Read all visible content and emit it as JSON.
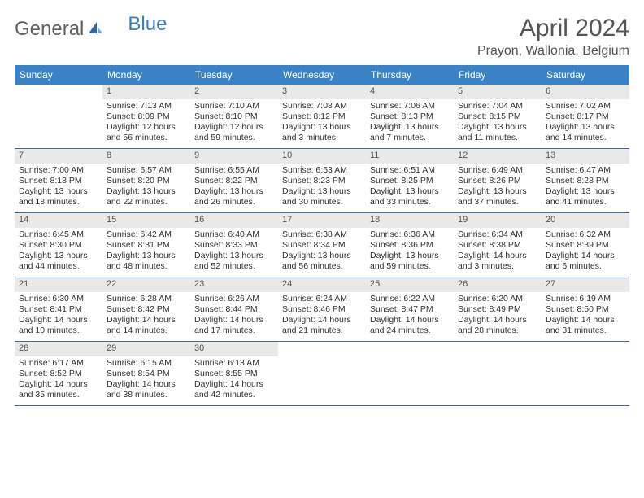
{
  "logo": {
    "gray": "General",
    "blue": "Blue"
  },
  "title": "April 2024",
  "location": "Prayon, Wallonia, Belgium",
  "colors": {
    "header_bg": "#3b82c4",
    "header_text": "#ffffff",
    "daynum_bg": "#e9e9e9",
    "daynum_text": "#555555",
    "body_text": "#333333",
    "row_border": "#3b6fa4",
    "logo_gray": "#606060",
    "logo_blue": "#3b7fc4"
  },
  "day_names": [
    "Sunday",
    "Monday",
    "Tuesday",
    "Wednesday",
    "Thursday",
    "Friday",
    "Saturday"
  ],
  "weeks": [
    [
      null,
      {
        "n": "1",
        "sr": "Sunrise: 7:13 AM",
        "ss": "Sunset: 8:09 PM",
        "d1": "Daylight: 12 hours",
        "d2": "and 56 minutes."
      },
      {
        "n": "2",
        "sr": "Sunrise: 7:10 AM",
        "ss": "Sunset: 8:10 PM",
        "d1": "Daylight: 12 hours",
        "d2": "and 59 minutes."
      },
      {
        "n": "3",
        "sr": "Sunrise: 7:08 AM",
        "ss": "Sunset: 8:12 PM",
        "d1": "Daylight: 13 hours",
        "d2": "and 3 minutes."
      },
      {
        "n": "4",
        "sr": "Sunrise: 7:06 AM",
        "ss": "Sunset: 8:13 PM",
        "d1": "Daylight: 13 hours",
        "d2": "and 7 minutes."
      },
      {
        "n": "5",
        "sr": "Sunrise: 7:04 AM",
        "ss": "Sunset: 8:15 PM",
        "d1": "Daylight: 13 hours",
        "d2": "and 11 minutes."
      },
      {
        "n": "6",
        "sr": "Sunrise: 7:02 AM",
        "ss": "Sunset: 8:17 PM",
        "d1": "Daylight: 13 hours",
        "d2": "and 14 minutes."
      }
    ],
    [
      {
        "n": "7",
        "sr": "Sunrise: 7:00 AM",
        "ss": "Sunset: 8:18 PM",
        "d1": "Daylight: 13 hours",
        "d2": "and 18 minutes."
      },
      {
        "n": "8",
        "sr": "Sunrise: 6:57 AM",
        "ss": "Sunset: 8:20 PM",
        "d1": "Daylight: 13 hours",
        "d2": "and 22 minutes."
      },
      {
        "n": "9",
        "sr": "Sunrise: 6:55 AM",
        "ss": "Sunset: 8:22 PM",
        "d1": "Daylight: 13 hours",
        "d2": "and 26 minutes."
      },
      {
        "n": "10",
        "sr": "Sunrise: 6:53 AM",
        "ss": "Sunset: 8:23 PM",
        "d1": "Daylight: 13 hours",
        "d2": "and 30 minutes."
      },
      {
        "n": "11",
        "sr": "Sunrise: 6:51 AM",
        "ss": "Sunset: 8:25 PM",
        "d1": "Daylight: 13 hours",
        "d2": "and 33 minutes."
      },
      {
        "n": "12",
        "sr": "Sunrise: 6:49 AM",
        "ss": "Sunset: 8:26 PM",
        "d1": "Daylight: 13 hours",
        "d2": "and 37 minutes."
      },
      {
        "n": "13",
        "sr": "Sunrise: 6:47 AM",
        "ss": "Sunset: 8:28 PM",
        "d1": "Daylight: 13 hours",
        "d2": "and 41 minutes."
      }
    ],
    [
      {
        "n": "14",
        "sr": "Sunrise: 6:45 AM",
        "ss": "Sunset: 8:30 PM",
        "d1": "Daylight: 13 hours",
        "d2": "and 44 minutes."
      },
      {
        "n": "15",
        "sr": "Sunrise: 6:42 AM",
        "ss": "Sunset: 8:31 PM",
        "d1": "Daylight: 13 hours",
        "d2": "and 48 minutes."
      },
      {
        "n": "16",
        "sr": "Sunrise: 6:40 AM",
        "ss": "Sunset: 8:33 PM",
        "d1": "Daylight: 13 hours",
        "d2": "and 52 minutes."
      },
      {
        "n": "17",
        "sr": "Sunrise: 6:38 AM",
        "ss": "Sunset: 8:34 PM",
        "d1": "Daylight: 13 hours",
        "d2": "and 56 minutes."
      },
      {
        "n": "18",
        "sr": "Sunrise: 6:36 AM",
        "ss": "Sunset: 8:36 PM",
        "d1": "Daylight: 13 hours",
        "d2": "and 59 minutes."
      },
      {
        "n": "19",
        "sr": "Sunrise: 6:34 AM",
        "ss": "Sunset: 8:38 PM",
        "d1": "Daylight: 14 hours",
        "d2": "and 3 minutes."
      },
      {
        "n": "20",
        "sr": "Sunrise: 6:32 AM",
        "ss": "Sunset: 8:39 PM",
        "d1": "Daylight: 14 hours",
        "d2": "and 6 minutes."
      }
    ],
    [
      {
        "n": "21",
        "sr": "Sunrise: 6:30 AM",
        "ss": "Sunset: 8:41 PM",
        "d1": "Daylight: 14 hours",
        "d2": "and 10 minutes."
      },
      {
        "n": "22",
        "sr": "Sunrise: 6:28 AM",
        "ss": "Sunset: 8:42 PM",
        "d1": "Daylight: 14 hours",
        "d2": "and 14 minutes."
      },
      {
        "n": "23",
        "sr": "Sunrise: 6:26 AM",
        "ss": "Sunset: 8:44 PM",
        "d1": "Daylight: 14 hours",
        "d2": "and 17 minutes."
      },
      {
        "n": "24",
        "sr": "Sunrise: 6:24 AM",
        "ss": "Sunset: 8:46 PM",
        "d1": "Daylight: 14 hours",
        "d2": "and 21 minutes."
      },
      {
        "n": "25",
        "sr": "Sunrise: 6:22 AM",
        "ss": "Sunset: 8:47 PM",
        "d1": "Daylight: 14 hours",
        "d2": "and 24 minutes."
      },
      {
        "n": "26",
        "sr": "Sunrise: 6:20 AM",
        "ss": "Sunset: 8:49 PM",
        "d1": "Daylight: 14 hours",
        "d2": "and 28 minutes."
      },
      {
        "n": "27",
        "sr": "Sunrise: 6:19 AM",
        "ss": "Sunset: 8:50 PM",
        "d1": "Daylight: 14 hours",
        "d2": "and 31 minutes."
      }
    ],
    [
      {
        "n": "28",
        "sr": "Sunrise: 6:17 AM",
        "ss": "Sunset: 8:52 PM",
        "d1": "Daylight: 14 hours",
        "d2": "and 35 minutes."
      },
      {
        "n": "29",
        "sr": "Sunrise: 6:15 AM",
        "ss": "Sunset: 8:54 PM",
        "d1": "Daylight: 14 hours",
        "d2": "and 38 minutes."
      },
      {
        "n": "30",
        "sr": "Sunrise: 6:13 AM",
        "ss": "Sunset: 8:55 PM",
        "d1": "Daylight: 14 hours",
        "d2": "and 42 minutes."
      },
      null,
      null,
      null,
      null
    ]
  ]
}
